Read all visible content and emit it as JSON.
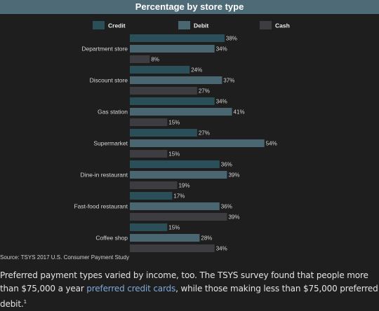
{
  "chart_data": {
    "type": "bar",
    "orientation": "horizontal",
    "title": "Percentage by store type",
    "categories": [
      "Department store",
      "Discount store",
      "Gas station",
      "Supermarket",
      "Dine-in restaurant",
      "Fast-food restaurant",
      "Coffee shop"
    ],
    "series": [
      {
        "name": "Credit",
        "values": [
          38,
          24,
          34,
          27,
          36,
          17,
          15
        ]
      },
      {
        "name": "Debit",
        "values": [
          34,
          37,
          41,
          54,
          39,
          36,
          28
        ]
      },
      {
        "name": "Cash",
        "values": [
          8,
          27,
          15,
          15,
          19,
          39,
          34
        ]
      }
    ],
    "value_suffix": "%",
    "xlim": [
      0,
      60
    ],
    "grid": false,
    "legend_position": "top",
    "colors": {
      "Credit": "#2b4f58",
      "Debit": "#4a6671",
      "Cash": "#3d3d41"
    }
  },
  "source": "Source: TSYS 2017 U.S. Consumer Payment Study",
  "caption": {
    "before": "Preferred payment types varied by income, too. The TSYS survey found that people more than $75,000 a year ",
    "link": "preferred credit cards",
    "after": ", while those making less than $75,000 preferred debit.",
    "footnote": "1"
  }
}
